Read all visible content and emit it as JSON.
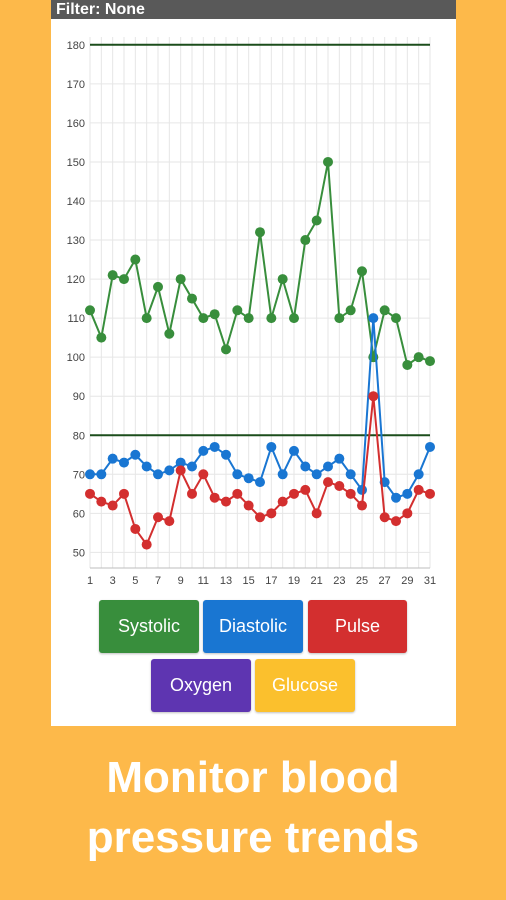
{
  "filter_label": "Filter: None",
  "legend_buttons": [
    {
      "label": "Systolic",
      "color": "#388E3C"
    },
    {
      "label": "Diastolic",
      "color": "#1976D2"
    },
    {
      "label": "Pulse",
      "color": "#D32F2F"
    },
    {
      "label": "Oxygen",
      "color": "#5E35B1"
    },
    {
      "label": "Glucose",
      "color": "#FBC02D"
    }
  ],
  "tagline": {
    "line1": "Monitor blood",
    "line2": "pressure trends"
  },
  "chart_data": {
    "type": "line",
    "x": [
      1,
      2,
      3,
      4,
      5,
      6,
      7,
      8,
      9,
      10,
      11,
      12,
      13,
      14,
      15,
      16,
      17,
      18,
      19,
      20,
      21,
      22,
      23,
      24,
      25,
      26,
      27,
      28,
      29,
      30,
      31
    ],
    "x_tick_labels": [
      "1",
      "3",
      "5",
      "7",
      "9",
      "11",
      "13",
      "15",
      "17",
      "19",
      "21",
      "23",
      "25",
      "27",
      "29",
      "31"
    ],
    "y_ticks": [
      50,
      60,
      70,
      80,
      90,
      100,
      110,
      120,
      130,
      140,
      150,
      160,
      170,
      180
    ],
    "ylim": [
      46,
      182
    ],
    "grid": true,
    "reference_lines": [
      180,
      80
    ],
    "reference_line_color": "#1B4D1B",
    "series": [
      {
        "color": "#388E3C",
        "values": [
          112,
          105,
          121,
          120,
          125,
          110,
          118,
          106,
          120,
          115,
          110,
          111,
          102,
          112,
          110,
          132,
          110,
          120,
          110,
          130,
          135,
          150,
          110,
          112,
          122,
          100,
          112,
          110,
          98,
          100,
          99
        ]
      },
      {
        "color": "#1976D2",
        "values": [
          70,
          70,
          74,
          73,
          75,
          72,
          70,
          71,
          73,
          72,
          76,
          77,
          75,
          70,
          69,
          68,
          77,
          70,
          76,
          72,
          70,
          72,
          74,
          70,
          66,
          110,
          68,
          64,
          65,
          70,
          77
        ]
      },
      {
        "color": "#D32F2F",
        "values": [
          65,
          63,
          62,
          65,
          56,
          52,
          59,
          58,
          71,
          65,
          70,
          64,
          63,
          65,
          62,
          59,
          60,
          63,
          65,
          66,
          60,
          68,
          67,
          65,
          62,
          90,
          59,
          58,
          60,
          66,
          65
        ]
      }
    ]
  }
}
